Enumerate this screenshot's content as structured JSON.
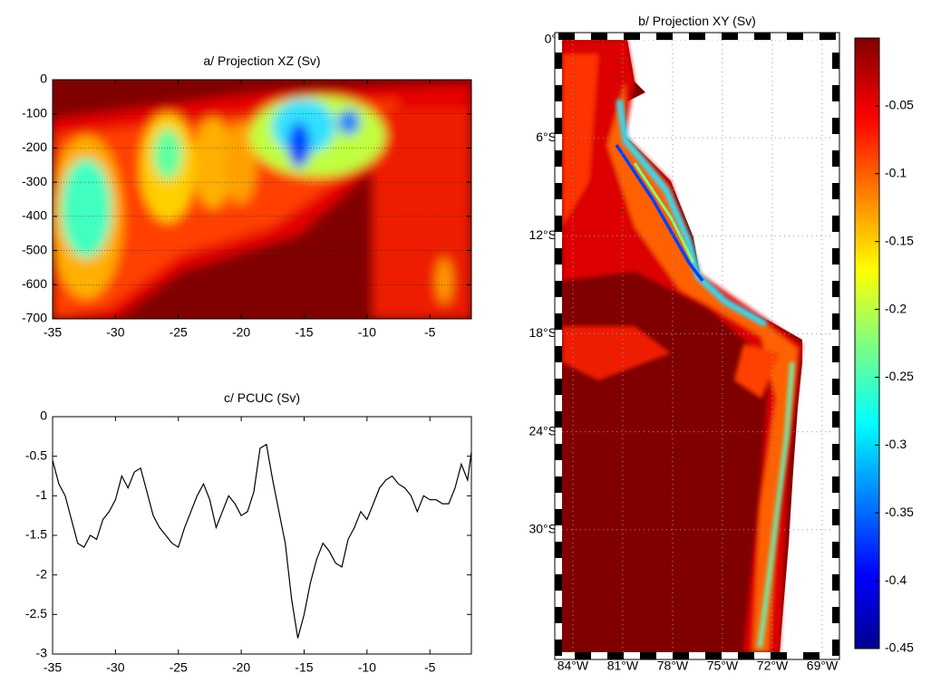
{
  "chart_data": [
    {
      "type": "contour",
      "title": "a/ Projection XZ (Sv)",
      "xlim": [
        -35,
        -1.7
      ],
      "ylim": [
        -700,
        0
      ],
      "xticks": [
        -35,
        -30,
        -25,
        -20,
        -15,
        -10,
        -5
      ],
      "yticks": [
        0,
        -100,
        -200,
        -300,
        -400,
        -500,
        -600,
        -700
      ]
    },
    {
      "type": "map",
      "title": "b/ Projection XY (Sv)",
      "xlim": [
        -84.65,
        -68.4
      ],
      "ylim": [
        -37.5,
        0
      ],
      "xticks": [
        {
          "value": -84,
          "label": "84°W"
        },
        {
          "value": -81,
          "label": "81°W"
        },
        {
          "value": -78,
          "label": "78°W"
        },
        {
          "value": -75,
          "label": "75°W"
        },
        {
          "value": -72,
          "label": "72°W"
        },
        {
          "value": -69,
          "label": "69°W"
        }
      ],
      "yticks": [
        {
          "value": 0,
          "label": "0°"
        },
        {
          "value": -6,
          "label": "6°S"
        },
        {
          "value": -12,
          "label": "12°S"
        },
        {
          "value": -18,
          "label": "18°S"
        },
        {
          "value": -24,
          "label": "24°S"
        },
        {
          "value": -30,
          "label": "30°S"
        }
      ],
      "clim": [
        -0.45,
        0
      ],
      "cticks": [
        -0.05,
        -0.1,
        -0.15,
        -0.2,
        -0.25,
        -0.3,
        -0.35,
        -0.4,
        -0.45
      ]
    },
    {
      "type": "line",
      "title": "c/ PCUC (Sv)",
      "color": "#000000",
      "xlim": [
        -35,
        -1.7
      ],
      "ylim": [
        -3,
        0
      ],
      "xticks": [
        -35,
        -30,
        -25,
        -20,
        -15,
        -10,
        -5
      ],
      "yticks": [
        0,
        -0.5,
        -1,
        -1.5,
        -2,
        -2.5,
        -3
      ],
      "x": [
        -35,
        -34.5,
        -34,
        -33.5,
        -33,
        -32.5,
        -32,
        -31.5,
        -31,
        -30.5,
        -30,
        -29.5,
        -29,
        -28.5,
        -28,
        -27.5,
        -27,
        -26.5,
        -26,
        -25.5,
        -25,
        -24.5,
        -24,
        -23.5,
        -23,
        -22.5,
        -22,
        -21.5,
        -21,
        -20.5,
        -20,
        -19.5,
        -19,
        -18.5,
        -18,
        -17.5,
        -17,
        -16.5,
        -16,
        -15.5,
        -15,
        -14.5,
        -14,
        -13.5,
        -13,
        -12.5,
        -12,
        -11.5,
        -11,
        -10.5,
        -10,
        -9.5,
        -9,
        -8.5,
        -8,
        -7.5,
        -7,
        -6.5,
        -6,
        -5.5,
        -5,
        -4.5,
        -4,
        -3.5,
        -3,
        -2.5,
        -2,
        -1.7
      ],
      "values": [
        -0.55,
        -0.85,
        -1.0,
        -1.3,
        -1.6,
        -1.65,
        -1.5,
        -1.55,
        -1.3,
        -1.2,
        -1.05,
        -0.75,
        -0.9,
        -0.7,
        -0.65,
        -0.95,
        -1.25,
        -1.4,
        -1.5,
        -1.6,
        -1.65,
        -1.4,
        -1.2,
        -1.0,
        -0.85,
        -1.05,
        -1.4,
        -1.2,
        -1.0,
        -1.1,
        -1.25,
        -1.2,
        -0.95,
        -0.4,
        -0.35,
        -0.8,
        -1.2,
        -1.6,
        -2.3,
        -2.8,
        -2.5,
        -2.1,
        -1.8,
        -1.6,
        -1.7,
        -1.85,
        -1.9,
        -1.55,
        -1.4,
        -1.2,
        -1.3,
        -1.1,
        -0.9,
        -0.8,
        -0.75,
        -0.85,
        -0.9,
        -1.0,
        -1.2,
        -1.0,
        -1.05,
        -1.05,
        -1.1,
        -1.1,
        -0.9,
        -0.6,
        -0.8,
        -0.45
      ]
    }
  ]
}
